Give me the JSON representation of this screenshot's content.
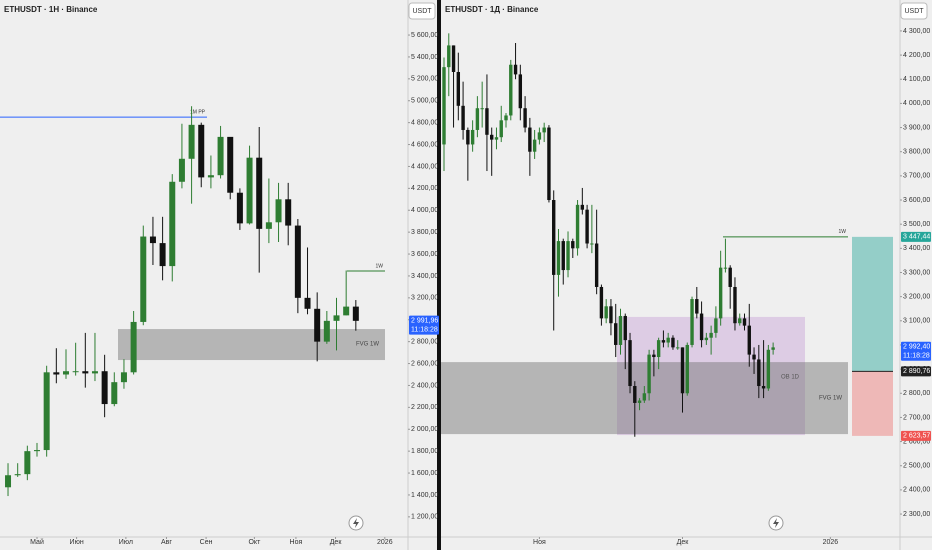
{
  "chart_data": [
    {
      "type": "candlestick",
      "title": "ETHUSDT · 1Н · Binance",
      "currency": "USDT",
      "open": [
        1470,
        1580,
        1590,
        1800,
        1810,
        2520,
        2500,
        2530,
        2530,
        2510,
        2530,
        2230,
        2430,
        2520,
        2980,
        3760,
        3700,
        3490,
        4260,
        4470,
        4780,
        4300,
        4320,
        4670,
        4160,
        3880,
        4480,
        3830,
        3890,
        4100,
        3860,
        3200,
        3100,
        2800,
        2990,
        3040,
        3120
      ],
      "high": [
        1690,
        1690,
        1850,
        1875,
        2580,
        2740,
        2730,
        2790,
        2880,
        2880,
        2680,
        2520,
        2640,
        3080,
        3860,
        3940,
        3940,
        4330,
        4790,
        4950,
        4800,
        4500,
        4770,
        4660,
        4200,
        4590,
        4760,
        4290,
        4250,
        4250,
        3920,
        3660,
        3250,
        3080,
        3200,
        3450,
        3180
      ],
      "low": [
        1390,
        1565,
        1535,
        1750,
        1750,
        2420,
        2460,
        2490,
        2380,
        2440,
        2110,
        2210,
        2370,
        2500,
        2950,
        3500,
        3360,
        3350,
        4200,
        4060,
        4210,
        4200,
        4290,
        4100,
        3820,
        3870,
        3430,
        3700,
        3710,
        3680,
        3060,
        3050,
        2620,
        2780,
        2720,
        3040,
        2900
      ],
      "close": [
        1580,
        1590,
        1800,
        1810,
        2520,
        2500,
        2530,
        2530,
        2510,
        2530,
        2230,
        2430,
        2520,
        2980,
        3760,
        3700,
        3490,
        4260,
        4470,
        4780,
        4300,
        4320,
        4670,
        4160,
        3880,
        4480,
        3830,
        3890,
        4100,
        3860,
        3200,
        3100,
        2800,
        2990,
        3040,
        3120,
        2990
      ],
      "color_up": "#2e7d32",
      "color_down": "#111111",
      "xlim": [
        -0.83,
        41.4
      ],
      "xticks": [
        {
          "value": 3,
          "label": "Май"
        },
        {
          "value": 7.1,
          "label": "Июн"
        },
        {
          "value": 12.2,
          "label": "Июл"
        },
        {
          "value": 16.4,
          "label": "Авг"
        },
        {
          "value": 20.5,
          "label": "Сен"
        },
        {
          "value": 25.5,
          "label": "Окт"
        },
        {
          "value": 29.8,
          "label": "Ноя"
        },
        {
          "value": 33.9,
          "label": "Дек"
        },
        {
          "value": 39,
          "label": "2026"
        }
      ],
      "ylim": [
        1016,
        5920
      ],
      "yticks": [
        {
          "value": 1200,
          "label": "1 200,00"
        },
        {
          "value": 1400,
          "label": "1 400,00"
        },
        {
          "value": 1600,
          "label": "1 600,00"
        },
        {
          "value": 1800,
          "label": "1 800,00"
        },
        {
          "value": 2000,
          "label": "2 000,00"
        },
        {
          "value": 2200,
          "label": "2 200,00"
        },
        {
          "value": 2400,
          "label": "2 400,00"
        },
        {
          "value": 2600,
          "label": "2 600,00"
        },
        {
          "value": 2800,
          "label": "2 800,00"
        },
        {
          "value": 3000,
          "label": "3 000,00"
        },
        {
          "value": 3200,
          "label": "3 200,00"
        },
        {
          "value": 3400,
          "label": "3 400,00"
        },
        {
          "value": 3600,
          "label": "3 600,00"
        },
        {
          "value": 3800,
          "label": "3 800,00"
        },
        {
          "value": 4000,
          "label": "4 000,00"
        },
        {
          "value": 4200,
          "label": "4 200,00"
        },
        {
          "value": 4400,
          "label": "4 400,00"
        },
        {
          "value": 4600,
          "label": "4 600,00"
        },
        {
          "value": 4800,
          "label": "4 800,00"
        },
        {
          "value": 5000,
          "label": "5 000,00"
        },
        {
          "value": 5200,
          "label": "5 200,00"
        },
        {
          "value": 5400,
          "label": "5 400,00"
        },
        {
          "value": 5600,
          "label": "5 600,00"
        }
      ],
      "levels": [
        {
          "name": "1M PP",
          "value": 4850,
          "color": "#2962ff"
        },
        {
          "name": "1W",
          "value": 3445,
          "color": "#2e7d32"
        }
      ],
      "zones": [
        {
          "name": "FVG 1W",
          "low": 2632,
          "high": 2915,
          "color": "rgba(110,110,110,0.45)"
        }
      ],
      "price_labels": [
        {
          "value": 2991.96,
          "label": "2 991,96",
          "color": "#2962ff",
          "countdown": "11:18:28"
        }
      ]
    },
    {
      "type": "candlestick",
      "title": "ETHUSDT · 1Д · Binance",
      "currency": "USDT",
      "open": [
        3830,
        4150,
        4240,
        4130,
        3990,
        3890,
        3830,
        3890,
        3980,
        3980,
        3870,
        3850,
        3860,
        3930,
        3950,
        4160,
        4120,
        3980,
        3900,
        3800,
        3850,
        3880,
        3900,
        3600,
        3290,
        3430,
        3310,
        3430,
        3400,
        3580,
        3560,
        3420,
        3420,
        3240,
        3110,
        3160,
        3090,
        3000,
        3120,
        3020,
        2830,
        2760,
        2770,
        2800,
        2960,
        2950,
        3020,
        3010,
        3030,
        2990,
        2990,
        2800,
        3000,
        3190,
        3130,
        3020,
        3030,
        3050,
        3110,
        3320,
        3320,
        3240,
        3090,
        3110,
        3080,
        2960,
        2940,
        2830,
        2820,
        2980
      ],
      "high": [
        4190,
        4290,
        4240,
        4210,
        4090,
        3900,
        3930,
        4030,
        4090,
        4120,
        3900,
        3900,
        3990,
        3960,
        4180,
        4250,
        4160,
        4030,
        3940,
        3890,
        3900,
        3920,
        3910,
        3640,
        3480,
        3440,
        3470,
        3440,
        3600,
        3650,
        3580,
        3580,
        3560,
        3250,
        3190,
        3190,
        3170,
        3150,
        3130,
        3050,
        2850,
        2780,
        2830,
        2980,
        2980,
        3030,
        3060,
        3050,
        3040,
        3020,
        2990,
        3010,
        3200,
        3240,
        3180,
        3050,
        3080,
        3160,
        3390,
        3440,
        3330,
        3280,
        3130,
        3130,
        3170,
        2990,
        3000,
        3020,
        3000,
        3010
      ],
      "low": [
        3720,
        4030,
        3900,
        3930,
        3850,
        3680,
        3800,
        3860,
        3900,
        3720,
        3700,
        3810,
        3840,
        3900,
        3930,
        4100,
        3930,
        3880,
        3700,
        3770,
        3830,
        3840,
        3590,
        3060,
        3200,
        3250,
        3280,
        3360,
        3370,
        3540,
        3400,
        3380,
        3210,
        3080,
        3090,
        3040,
        2950,
        2960,
        2900,
        2800,
        2620,
        2730,
        2760,
        2770,
        2870,
        2900,
        2990,
        2990,
        2980,
        2980,
        2720,
        2790,
        2990,
        3110,
        2990,
        3000,
        2960,
        3030,
        3080,
        3300,
        3150,
        3060,
        3080,
        3060,
        2910,
        2880,
        2780,
        2780,
        2810,
        2960
      ],
      "close": [
        4150,
        4240,
        4130,
        3990,
        3890,
        3830,
        3890,
        3980,
        3980,
        3870,
        3850,
        3860,
        3930,
        3950,
        4160,
        4120,
        3980,
        3900,
        3800,
        3850,
        3880,
        3900,
        3600,
        3290,
        3430,
        3310,
        3430,
        3400,
        3580,
        3560,
        3420,
        3420,
        3240,
        3110,
        3160,
        3090,
        3000,
        3120,
        3020,
        2830,
        2760,
        2770,
        2800,
        2960,
        2950,
        3020,
        3010,
        3030,
        2990,
        2990,
        2800,
        3000,
        3190,
        3130,
        3020,
        3030,
        3050,
        3110,
        3320,
        3320,
        3240,
        3090,
        3110,
        3080,
        2960,
        2940,
        2830,
        2820,
        2980,
        2990
      ],
      "color_up": "#2e7d32",
      "color_down": "#111111",
      "xlim": [
        -0.63,
        95.6
      ],
      "xticks": [
        {
          "value": 20,
          "label": "Ноя"
        },
        {
          "value": 50,
          "label": "Дек"
        },
        {
          "value": 81,
          "label": "2026"
        }
      ],
      "ylim": [
        2205,
        4428
      ],
      "yticks": [
        {
          "value": 2300,
          "label": "2 300,00"
        },
        {
          "value": 2400,
          "label": "2 400,00"
        },
        {
          "value": 2500,
          "label": "2 500,00"
        },
        {
          "value": 2600,
          "label": "2 600,00"
        },
        {
          "value": 2700,
          "label": "2 700,00"
        },
        {
          "value": 2800,
          "label": "2 800,00"
        },
        {
          "value": 2900,
          "label": "2 900,00"
        },
        {
          "value": 3000,
          "label": "3 000,00"
        },
        {
          "value": 3100,
          "label": "3 100,00"
        },
        {
          "value": 3200,
          "label": "3 200,00"
        },
        {
          "value": 3300,
          "label": "3 300,00"
        },
        {
          "value": 3400,
          "label": "3 400,00"
        },
        {
          "value": 3500,
          "label": "3 500,00"
        },
        {
          "value": 3600,
          "label": "3 600,00"
        },
        {
          "value": 3700,
          "label": "3 700,00"
        },
        {
          "value": 3800,
          "label": "3 800,00"
        },
        {
          "value": 3900,
          "label": "3 900,00"
        },
        {
          "value": 4000,
          "label": "4 000,00"
        },
        {
          "value": 4100,
          "label": "4 100,00"
        },
        {
          "value": 4200,
          "label": "4 200,00"
        },
        {
          "value": 4300,
          "label": "4 300,00"
        }
      ],
      "levels": [
        {
          "name": "1W",
          "value": 3447.44,
          "color": "#2e7d32"
        }
      ],
      "zones": [
        {
          "name": "OB 1D",
          "low": 2627,
          "high": 3116,
          "color": "rgba(190,140,210,0.35)"
        },
        {
          "name": "FVG 1W",
          "low": 2631,
          "high": 2929,
          "color": "rgba(110,110,110,0.45)"
        }
      ],
      "price_labels": [
        {
          "value": 3447.44,
          "label": "3 447,44",
          "color": "#26a69a"
        },
        {
          "value": 2992.4,
          "label": "2 992,40",
          "color": "#2962ff",
          "countdown": "11:18:28"
        },
        {
          "value": 2890.76,
          "label": "2 890,76",
          "color": "#222222"
        },
        {
          "value": 2623.57,
          "label": "2 623,57",
          "color": "#ef5350"
        }
      ]
    }
  ]
}
